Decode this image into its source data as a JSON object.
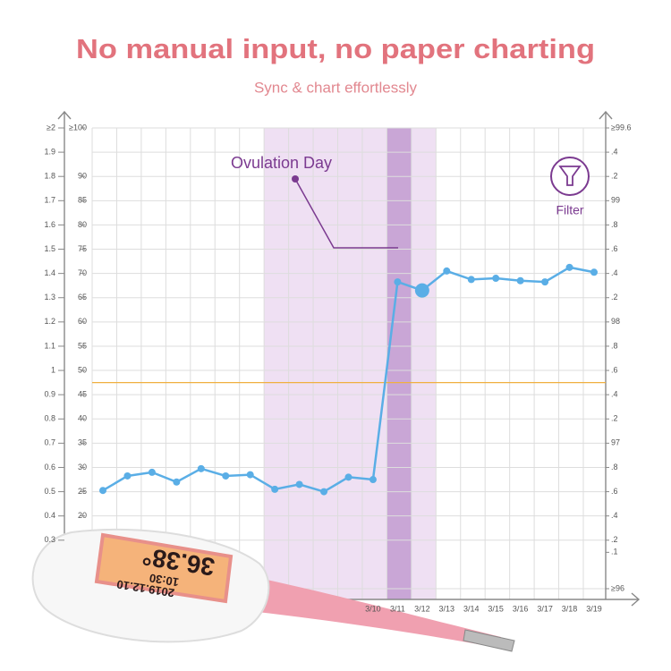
{
  "chart_data": {
    "type": "line",
    "title": "No manual input, no paper charting",
    "subtitle": "Sync & chart effortlessly",
    "categories": [
      null,
      null,
      null,
      null,
      null,
      null,
      null,
      null,
      null,
      null,
      null,
      "3/10",
      "3/11",
      "3/12",
      "3/13",
      "3/14",
      "3/15",
      "3/16",
      "3/17",
      "3/18",
      "3/19"
    ],
    "values": [
      96.61,
      96.73,
      96.76,
      96.68,
      96.79,
      96.73,
      96.74,
      96.62,
      96.66,
      96.6,
      96.72,
      96.7,
      98.33,
      98.26,
      98.42,
      98.35,
      98.36,
      98.34,
      98.33,
      98.45,
      98.41
    ],
    "color": "#5aaee6",
    "coverline": 97.5,
    "coverline_color": "#f0b040",
    "grid": true,
    "ylim": [
      0.1,
      2
    ],
    "yticks": [
      {
        "value": 2,
        "label": "≥2"
      },
      1.9,
      1.8,
      1.7,
      1.6,
      1.5,
      1.4,
      1.3,
      1.2,
      1.1,
      1,
      0.9,
      0.8,
      0.7,
      0.6,
      0.5,
      0.4,
      0.3
    ],
    "y2lim": [
      5,
      100
    ],
    "y2ticks": [
      {
        "value": 100,
        "label": "≥100"
      },
      90,
      85,
      80,
      75,
      70,
      65,
      60,
      55,
      50,
      45,
      40,
      35,
      30,
      25,
      20
    ],
    "y3lim": [
      95.8,
      99.6
    ],
    "y3ticks": [
      {
        "value": 99.6,
        "label": "≥99.6"
      },
      {
        "value": 99.4,
        "label": ".4"
      },
      {
        "value": 99.2,
        "label": ".2"
      },
      99,
      {
        "value": 98.8,
        "label": ".8"
      },
      {
        "value": 98.6,
        "label": ".6"
      },
      {
        "value": 98.4,
        "label": ".4"
      },
      {
        "value": 98.2,
        "label": ".2"
      },
      98,
      {
        "value": 97.8,
        "label": ".8"
      },
      {
        "value": 97.6,
        "label": ".6"
      },
      {
        "value": 97.4,
        "label": ".4"
      },
      {
        "value": 97.2,
        "label": ".2"
      },
      97,
      {
        "value": 96.8,
        "label": ".8"
      },
      {
        "value": 96.6,
        "label": ".6"
      },
      {
        "value": 96.4,
        "label": ".4"
      },
      {
        "value": 96.2,
        "label": ".2"
      },
      {
        "value": 96.1,
        "label": ".1"
      },
      {
        "value": 95.8,
        "label": "≥96"
      }
    ],
    "annotation": "Ovulation Day",
    "filter_label": "Filter",
    "thermometer_display": [
      "36.38°",
      "10:30",
      "2019.12.10"
    ]
  }
}
